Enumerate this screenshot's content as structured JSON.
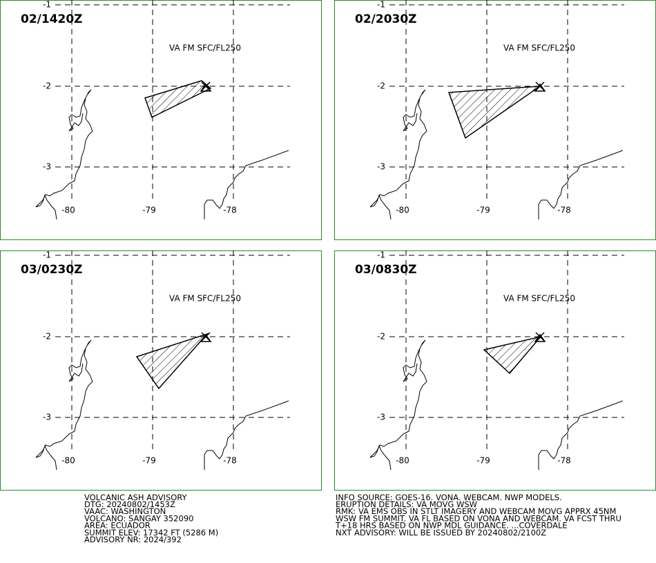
{
  "panels": [
    {
      "time": "02/1420Z",
      "layer": "VA FM SFC/FL250"
    },
    {
      "time": "02/2030Z",
      "layer": "VA FM SFC/FL250"
    },
    {
      "time": "03/0230Z",
      "layer": "VA FM SFC/FL250"
    },
    {
      "time": "03/0830Z",
      "layer": "VA FM SFC/FL250"
    }
  ],
  "grid": {
    "lat_labels": [
      "-1",
      "-2",
      "-3"
    ],
    "lon_labels": [
      "-80",
      "-79",
      "-78"
    ]
  },
  "advisory": {
    "left": [
      "VOLCANIC ASH ADVISORY",
      "DTG: 20240802/1453Z",
      "VAAC: WASHINGTON",
      "VOLCANO: SANGAY 352090",
      "AREA: ECUADOR",
      "SUMMIT ELEV: 17342 FT (5286 M)",
      "ADVISORY NR: 2024/392"
    ],
    "right": [
      "INFO SOURCE: GOES-16. VONA. WEBCAM. NWP MODELS.",
      "ERUPTION DETAILS: VA MOVG WSW",
      "RMK: VA EMS OBS IN STLT IMAGERY AND WEBCAM MOVG APPRX 45NM",
      "WSW FM SUMMIT. VA FL BASED ON VONA AND WEBCAM. VA FCST THRU",
      "T+18 HRS BASED ON NWP MDL GUIDANCE. ...COVERDALE",
      "NXT ADVISORY: WILL BE ISSUED BY 20240802/2100Z"
    ]
  }
}
